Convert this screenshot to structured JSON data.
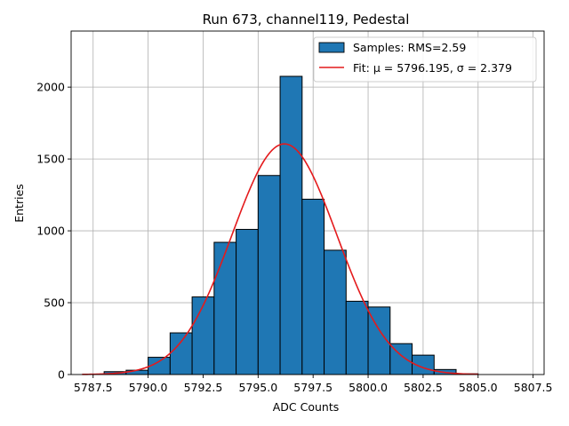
{
  "chart_data": {
    "type": "bar",
    "title": "Run 673, channel119, Pedestal",
    "xlabel": "ADC Counts",
    "ylabel": "Entries",
    "xlim": [
      5786.5,
      5808.0
    ],
    "ylim": [
      0,
      2390
    ],
    "grid": true,
    "legend_position": "top-right",
    "colors": {
      "bar": "#1f77b4",
      "fit": "#e41a1c",
      "edge": "#000000",
      "grid": "#b0b0b0"
    },
    "xticks": [
      {
        "value": 5787.5,
        "label": "5787.5"
      },
      {
        "value": 5790.0,
        "label": "5790.0"
      },
      {
        "value": 5792.5,
        "label": "5792.5"
      },
      {
        "value": 5795.0,
        "label": "5795.0"
      },
      {
        "value": 5797.5,
        "label": "5797.5"
      },
      {
        "value": 5800.0,
        "label": "5800.0"
      },
      {
        "value": 5802.5,
        "label": "5802.5"
      },
      {
        "value": 5805.0,
        "label": "5805.0"
      },
      {
        "value": 5807.5,
        "label": "5807.5"
      }
    ],
    "yticks": [
      {
        "value": 0,
        "label": "0"
      },
      {
        "value": 500,
        "label": "500"
      },
      {
        "value": 1000,
        "label": "1000"
      },
      {
        "value": 1500,
        "label": "1500"
      },
      {
        "value": 2000,
        "label": "2000"
      }
    ],
    "bin_width": 1.0,
    "bins": [
      {
        "left": 5788.0,
        "count": 20
      },
      {
        "left": 5789.0,
        "count": 30
      },
      {
        "left": 5790.0,
        "count": 120
      },
      {
        "left": 5791.0,
        "count": 290
      },
      {
        "left": 5792.0,
        "count": 540
      },
      {
        "left": 5793.0,
        "count": 920
      },
      {
        "left": 5794.0,
        "count": 1010
      },
      {
        "left": 5795.0,
        "count": 1385
      },
      {
        "left": 5796.0,
        "count": 2075
      },
      {
        "left": 5797.0,
        "count": 1220
      },
      {
        "left": 5798.0,
        "count": 865
      },
      {
        "left": 5799.0,
        "count": 510
      },
      {
        "left": 5800.0,
        "count": 470
      },
      {
        "left": 5801.0,
        "count": 215
      },
      {
        "left": 5802.0,
        "count": 135
      },
      {
        "left": 5803.0,
        "count": 35
      },
      {
        "left": 5804.0,
        "count": 5
      }
    ],
    "fit": {
      "mu": 5796.195,
      "sigma": 2.379,
      "amplitude": 1605,
      "x_range": [
        5787.0,
        5805.0
      ]
    },
    "legend": {
      "samples_label": "Samples: RMS=2.59",
      "fit_label": "Fit: μ = 5796.195, σ = 2.379"
    }
  }
}
